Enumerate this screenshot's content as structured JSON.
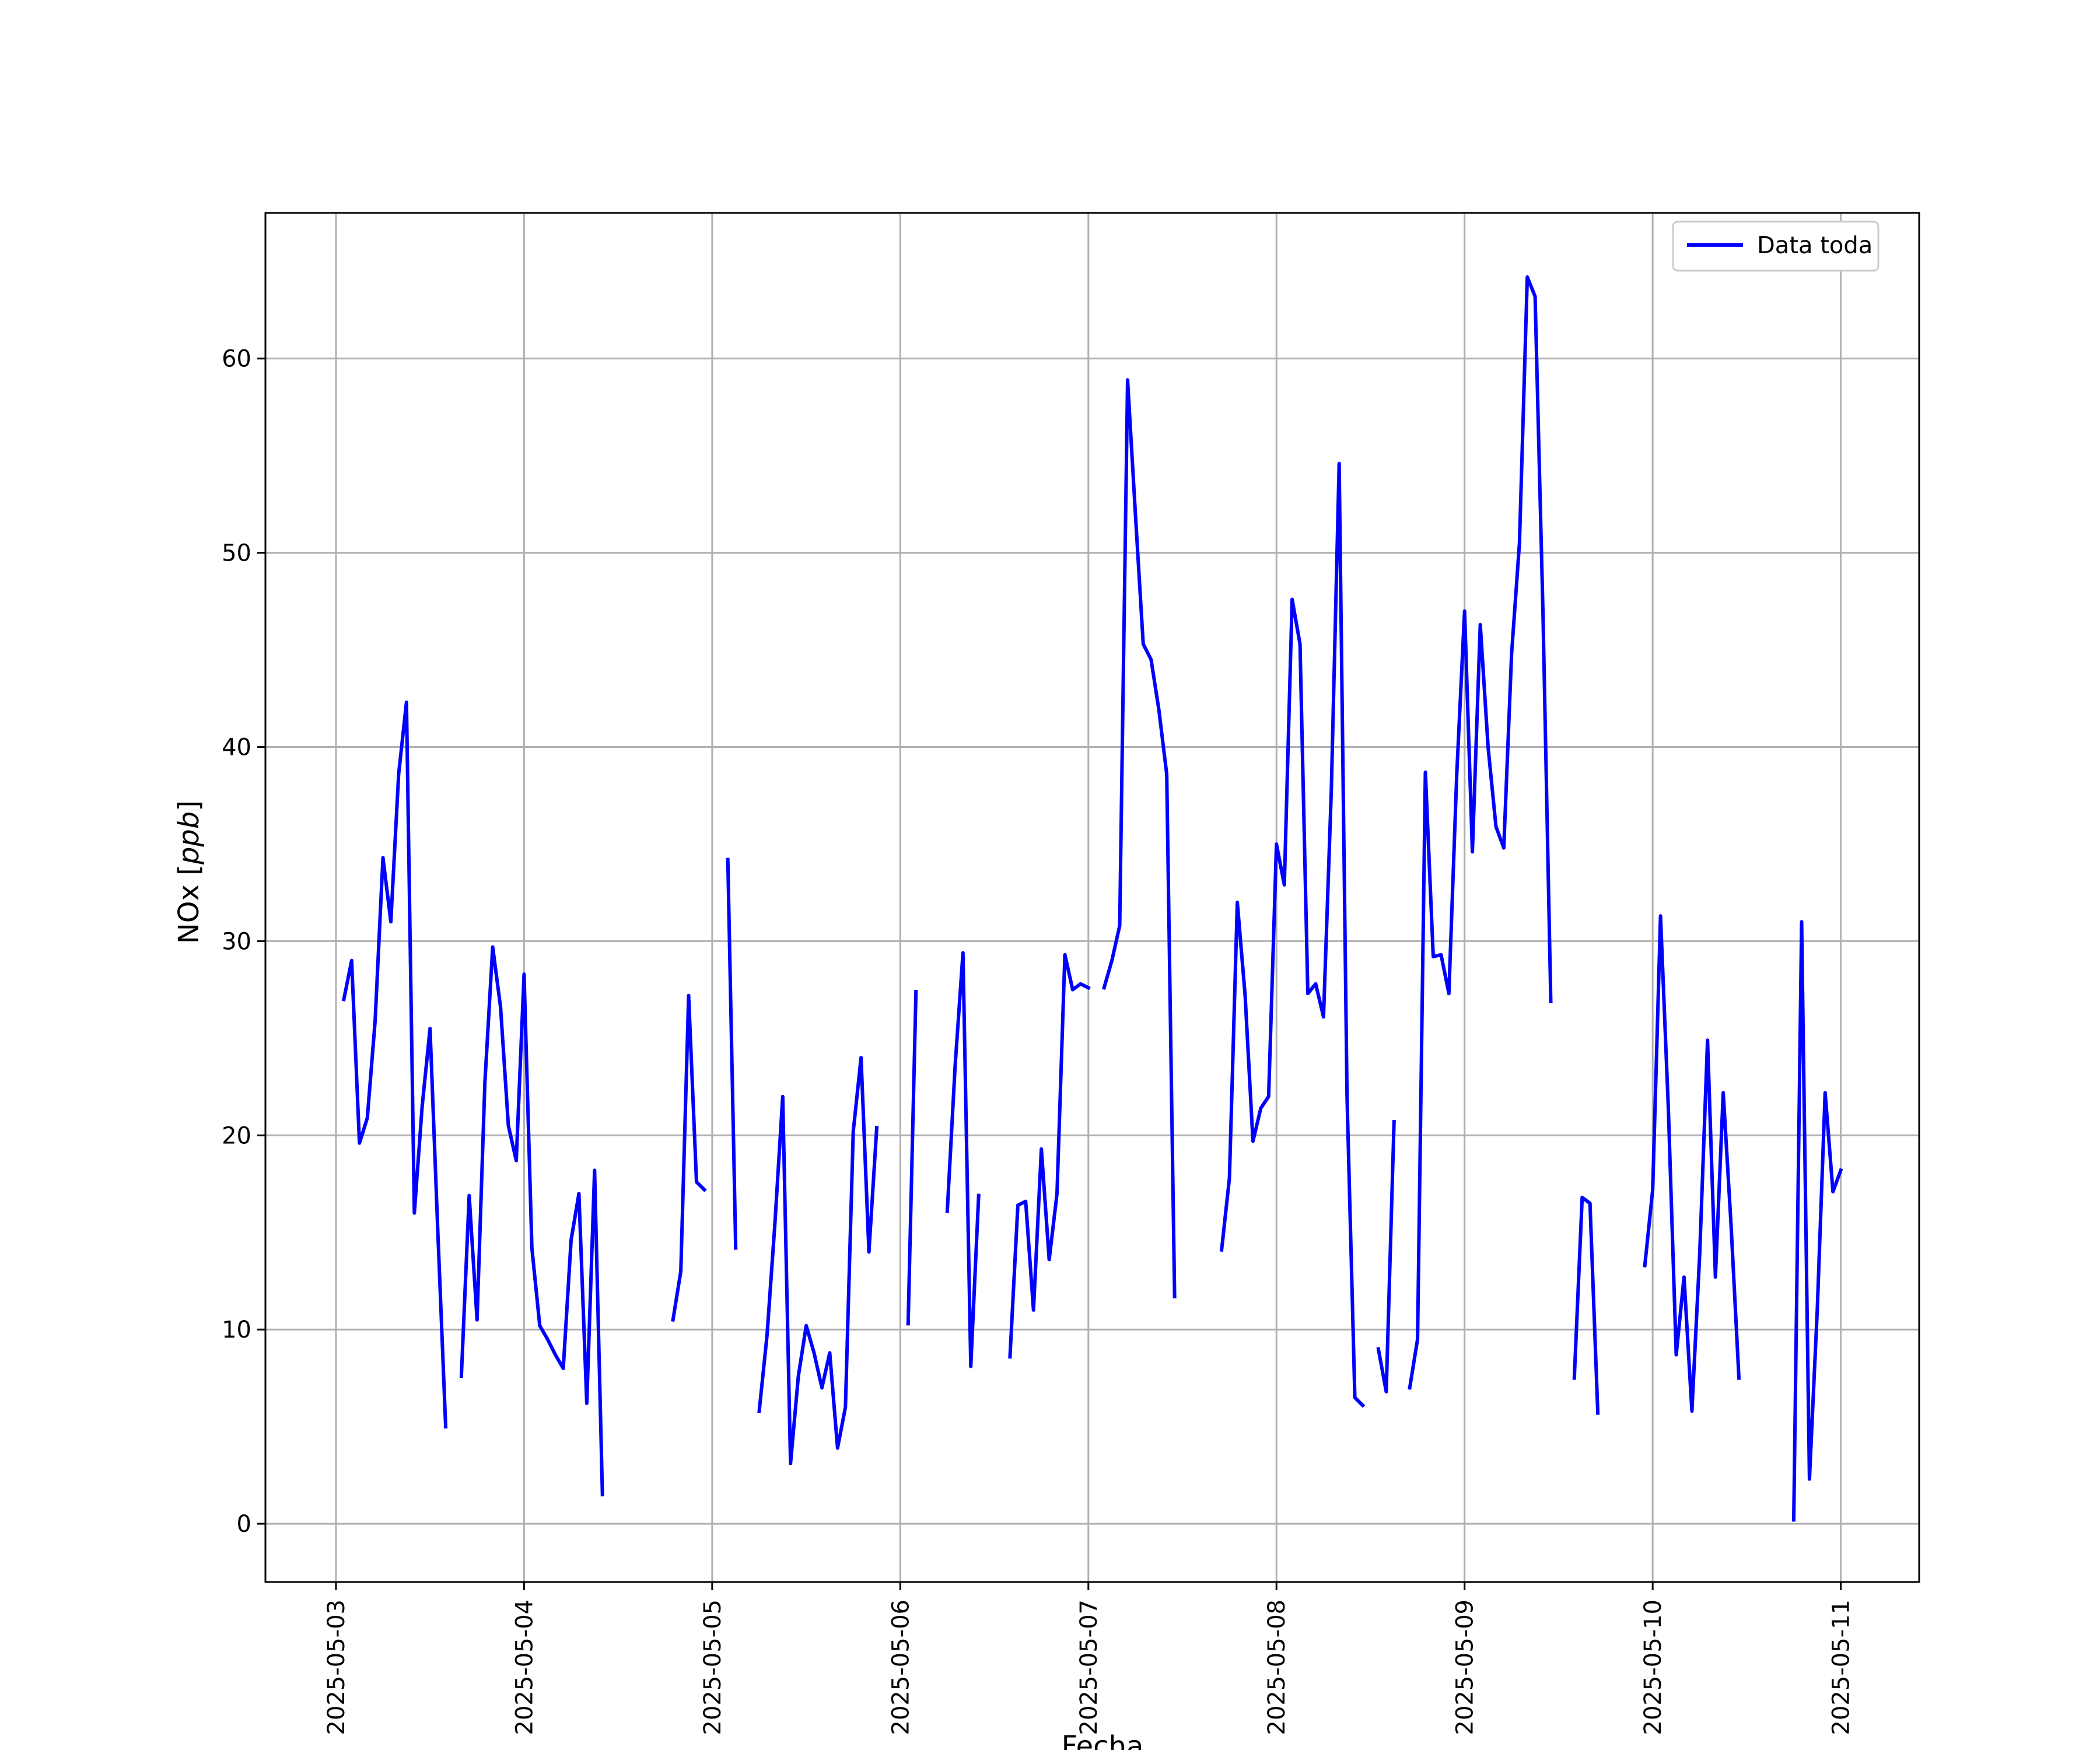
{
  "chart_data": {
    "type": "line",
    "title": "",
    "xlabel": "Fecha",
    "ylabel_prefix": "NOx [",
    "ylabel_math": "ppb",
    "ylabel_suffix": "]",
    "x_ticks": [
      "2025-05-03",
      "2025-05-04",
      "2025-05-05",
      "2025-05-06",
      "2025-05-07",
      "2025-05-08",
      "2025-05-09",
      "2025-05-10",
      "2025-05-11"
    ],
    "y_ticks": [
      0,
      10,
      20,
      30,
      40,
      50,
      60
    ],
    "xlim": [
      "2025-05-02T15:00",
      "2025-05-11T10:00"
    ],
    "ylim": [
      -3,
      67.5
    ],
    "grid": true,
    "legend_position": "top-right",
    "line_color": "#0000ff",
    "series": [
      {
        "name": "Data toda",
        "segments": [
          [
            [
              "2025-05-03T01:00",
              27.0
            ],
            [
              "2025-05-03T02:00",
              29.0
            ],
            [
              "2025-05-03T03:00",
              19.6
            ],
            [
              "2025-05-03T04:00",
              20.9
            ],
            [
              "2025-05-03T05:00",
              25.9
            ],
            [
              "2025-05-03T06:00",
              34.3
            ],
            [
              "2025-05-03T07:00",
              31.0
            ],
            [
              "2025-05-03T08:00",
              38.6
            ],
            [
              "2025-05-03T09:00",
              42.3
            ],
            [
              "2025-05-03T10:00",
              16.0
            ],
            [
              "2025-05-03T11:00",
              21.5
            ],
            [
              "2025-05-03T12:00",
              25.5
            ],
            [
              "2025-05-03T13:00",
              15.0
            ],
            [
              "2025-05-03T14:00",
              5.0
            ]
          ],
          [
            [
              "2025-05-03T16:00",
              7.6
            ],
            [
              "2025-05-03T17:00",
              16.9
            ],
            [
              "2025-05-03T18:00",
              10.5
            ],
            [
              "2025-05-03T19:00",
              22.7
            ],
            [
              "2025-05-03T20:00",
              29.7
            ],
            [
              "2025-05-03T21:00",
              26.6
            ],
            [
              "2025-05-03T22:00",
              20.5
            ],
            [
              "2025-05-03T23:00",
              18.7
            ],
            [
              "2025-05-04T00:00",
              28.3
            ],
            [
              "2025-05-04T01:00",
              14.2
            ],
            [
              "2025-05-04T02:00",
              10.2
            ],
            [
              "2025-05-04T03:00",
              9.5
            ],
            [
              "2025-05-04T04:00",
              8.7
            ],
            [
              "2025-05-04T05:00",
              8.0
            ],
            [
              "2025-05-04T06:00",
              14.6
            ],
            [
              "2025-05-04T07:00",
              17.0
            ],
            [
              "2025-05-04T08:00",
              6.2
            ],
            [
              "2025-05-04T09:00",
              18.2
            ],
            [
              "2025-05-04T10:00",
              1.5
            ]
          ],
          [
            [
              "2025-05-04T19:00",
              10.5
            ],
            [
              "2025-05-04T20:00",
              13.0
            ],
            [
              "2025-05-04T21:00",
              27.2
            ],
            [
              "2025-05-04T22:00",
              17.6
            ],
            [
              "2025-05-04T23:00",
              17.2
            ]
          ],
          [
            [
              "2025-05-05T02:00",
              34.2
            ],
            [
              "2025-05-05T03:00",
              14.2
            ]
          ],
          [
            [
              "2025-05-05T06:00",
              5.8
            ],
            [
              "2025-05-05T07:00",
              9.7
            ],
            [
              "2025-05-05T08:00",
              15.4
            ],
            [
              "2025-05-05T09:00",
              22.0
            ],
            [
              "2025-05-05T10:00",
              3.1
            ],
            [
              "2025-05-05T11:00",
              7.6
            ],
            [
              "2025-05-05T12:00",
              10.2
            ],
            [
              "2025-05-05T13:00",
              8.8
            ],
            [
              "2025-05-05T14:00",
              7.0
            ],
            [
              "2025-05-05T15:00",
              8.8
            ],
            [
              "2025-05-05T16:00",
              3.9
            ],
            [
              "2025-05-05T17:00",
              6.0
            ],
            [
              "2025-05-05T18:00",
              20.2
            ],
            [
              "2025-05-05T19:00",
              24.0
            ],
            [
              "2025-05-05T20:00",
              14.0
            ],
            [
              "2025-05-05T21:00",
              20.4
            ]
          ],
          [
            [
              "2025-05-06T01:00",
              10.3
            ],
            [
              "2025-05-06T02:00",
              27.4
            ]
          ],
          [
            [
              "2025-05-06T06:00",
              16.1
            ],
            [
              "2025-05-06T07:00",
              23.6
            ],
            [
              "2025-05-06T08:00",
              29.4
            ],
            [
              "2025-05-06T09:00",
              8.1
            ],
            [
              "2025-05-06T10:00",
              16.9
            ]
          ],
          [
            [
              "2025-05-06T14:00",
              8.6
            ],
            [
              "2025-05-06T15:00",
              16.4
            ],
            [
              "2025-05-06T16:00",
              16.6
            ],
            [
              "2025-05-06T17:00",
              11.0
            ],
            [
              "2025-05-06T18:00",
              19.3
            ],
            [
              "2025-05-06T19:00",
              13.6
            ],
            [
              "2025-05-06T20:00",
              17.0
            ],
            [
              "2025-05-06T21:00",
              29.3
            ],
            [
              "2025-05-06T22:00",
              27.5
            ],
            [
              "2025-05-06T23:00",
              27.8
            ],
            [
              "2025-05-07T00:00",
              27.6
            ]
          ],
          [
            [
              "2025-05-07T02:00",
              27.6
            ],
            [
              "2025-05-07T03:00",
              29.0
            ],
            [
              "2025-05-07T04:00",
              30.8
            ],
            [
              "2025-05-07T05:00",
              58.9
            ],
            [
              "2025-05-07T06:00",
              52.0
            ],
            [
              "2025-05-07T07:00",
              45.3
            ],
            [
              "2025-05-07T08:00",
              44.5
            ],
            [
              "2025-05-07T09:00",
              41.9
            ],
            [
              "2025-05-07T10:00",
              38.6
            ],
            [
              "2025-05-07T11:00",
              11.7
            ]
          ],
          [
            [
              "2025-05-07T17:00",
              14.1
            ],
            [
              "2025-05-07T18:00",
              17.8
            ],
            [
              "2025-05-07T19:00",
              32.0
            ],
            [
              "2025-05-07T20:00",
              27.2
            ],
            [
              "2025-05-07T21:00",
              19.7
            ],
            [
              "2025-05-07T22:00",
              21.4
            ],
            [
              "2025-05-07T23:00",
              22.0
            ],
            [
              "2025-05-08T00:00",
              35.0
            ],
            [
              "2025-05-08T01:00",
              32.9
            ],
            [
              "2025-05-08T02:00",
              47.6
            ],
            [
              "2025-05-08T03:00",
              45.3
            ],
            [
              "2025-05-08T04:00",
              27.3
            ],
            [
              "2025-05-08T05:00",
              27.8
            ],
            [
              "2025-05-08T06:00",
              26.1
            ],
            [
              "2025-05-08T07:00",
              37.8
            ],
            [
              "2025-05-08T08:00",
              54.6
            ],
            [
              "2025-05-08T09:00",
              22.0
            ],
            [
              "2025-05-08T10:00",
              6.5
            ],
            [
              "2025-05-08T11:00",
              6.1
            ]
          ],
          [
            [
              "2025-05-08T13:00",
              9.0
            ],
            [
              "2025-05-08T14:00",
              6.8
            ],
            [
              "2025-05-08T15:00",
              20.7
            ]
          ],
          [
            [
              "2025-05-08T17:00",
              7.0
            ],
            [
              "2025-05-08T18:00",
              9.5
            ],
            [
              "2025-05-08T19:00",
              38.7
            ],
            [
              "2025-05-08T20:00",
              29.2
            ],
            [
              "2025-05-08T21:00",
              29.3
            ],
            [
              "2025-05-08T22:00",
              27.3
            ],
            [
              "2025-05-08T23:00",
              38.6
            ],
            [
              "2025-05-09T00:00",
              47.0
            ],
            [
              "2025-05-09T01:00",
              34.6
            ],
            [
              "2025-05-09T02:00",
              46.3
            ],
            [
              "2025-05-09T03:00",
              40.0
            ],
            [
              "2025-05-09T04:00",
              35.9
            ],
            [
              "2025-05-09T05:00",
              34.8
            ],
            [
              "2025-05-09T06:00",
              44.8
            ],
            [
              "2025-05-09T07:00",
              50.5
            ],
            [
              "2025-05-09T08:00",
              64.2
            ],
            [
              "2025-05-09T09:00",
              63.2
            ],
            [
              "2025-05-09T10:00",
              46.9
            ],
            [
              "2025-05-09T11:00",
              26.9
            ]
          ],
          [
            [
              "2025-05-09T14:00",
              7.5
            ],
            [
              "2025-05-09T15:00",
              16.8
            ],
            [
              "2025-05-09T16:00",
              16.5
            ],
            [
              "2025-05-09T17:00",
              5.7
            ]
          ],
          [
            [
              "2025-05-09T23:00",
              13.3
            ],
            [
              "2025-05-10T00:00",
              17.2
            ],
            [
              "2025-05-10T01:00",
              31.3
            ],
            [
              "2025-05-10T02:00",
              21.4
            ],
            [
              "2025-05-10T03:00",
              8.7
            ],
            [
              "2025-05-10T04:00",
              12.7
            ],
            [
              "2025-05-10T05:00",
              5.8
            ],
            [
              "2025-05-10T06:00",
              13.9
            ],
            [
              "2025-05-10T07:00",
              24.9
            ],
            [
              "2025-05-10T08:00",
              12.7
            ],
            [
              "2025-05-10T09:00",
              22.2
            ],
            [
              "2025-05-10T10:00",
              15.4
            ],
            [
              "2025-05-10T11:00",
              7.5
            ]
          ],
          [
            [
              "2025-05-10T18:00",
              0.2
            ],
            [
              "2025-05-10T19:00",
              31.0
            ],
            [
              "2025-05-10T20:00",
              2.3
            ],
            [
              "2025-05-10T21:00",
              11.0
            ],
            [
              "2025-05-10T22:00",
              22.2
            ],
            [
              "2025-05-10T23:00",
              17.1
            ],
            [
              "2025-05-11T00:00",
              18.2
            ]
          ]
        ]
      }
    ]
  }
}
